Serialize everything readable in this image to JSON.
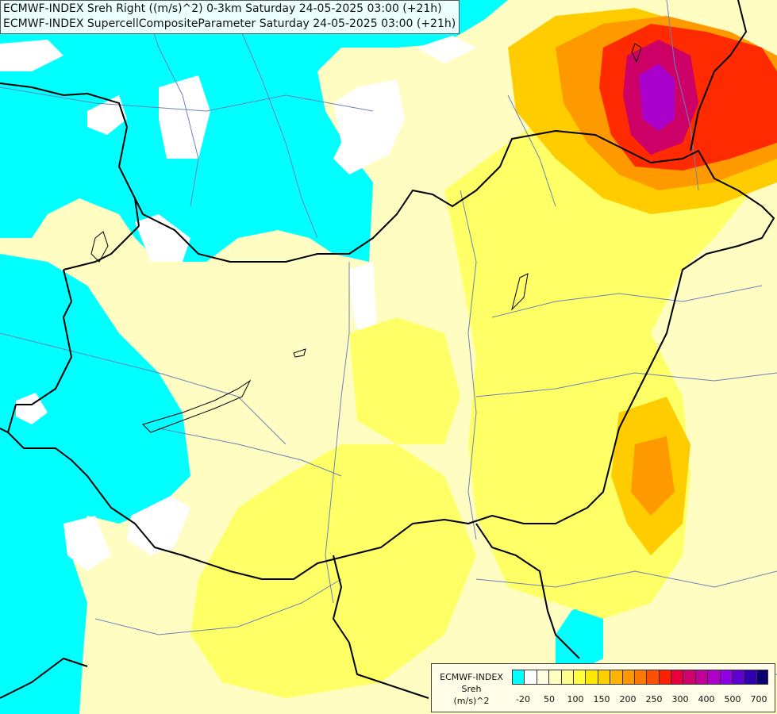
{
  "title_lines": [
    "ECMWF-INDEX Sreh Right ((m/s)^2) 0-3km Saturday 24-05-2025 03:00 (+21h)",
    "ECMWF-INDEX SupercellCompositeParameter Saturday 24-05-2025 03:00 (+21h)"
  ],
  "legend": {
    "model": "ECMWF-INDEX",
    "parameter": "Sreh",
    "unit": "(m/s)^2",
    "colors": [
      "#00ffff",
      "#ffffff",
      "#ffffe0",
      "#ffffc0",
      "#ffff90",
      "#ffff40",
      "#ffe800",
      "#ffd000",
      "#ffb400",
      "#ff9800",
      "#ff7800",
      "#ff5000",
      "#ff2000",
      "#e8003c",
      "#d0006c",
      "#c00098",
      "#b000c8",
      "#9000e0",
      "#6000d0",
      "#3000b0",
      "#0a0070"
    ],
    "ticks": [
      "-20",
      "50",
      "100",
      "150",
      "200",
      "250",
      "300",
      "400",
      "500",
      "700"
    ]
  },
  "colors": {
    "cyan": "#00ffff",
    "white": "#ffffff",
    "pale": "#fffdc2",
    "yellow": "#ffff66",
    "orange": "#ff9900",
    "red": "#ff2a00",
    "magenta": "#cc00cc"
  }
}
